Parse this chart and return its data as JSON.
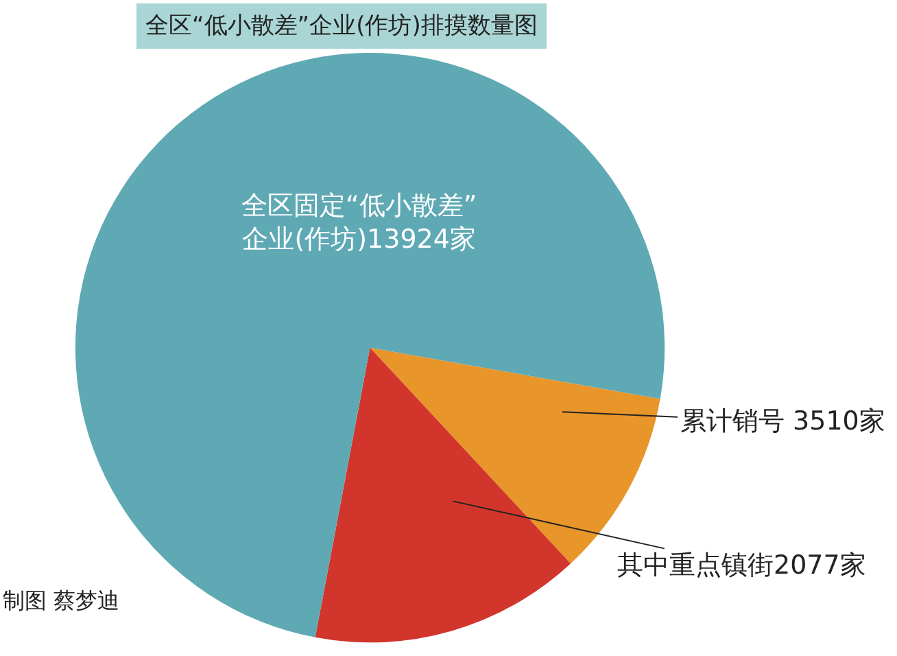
{
  "chart_data": {
    "type": "pie",
    "title": "全区“低小散差”企业(作坊)排摸数量图",
    "categories": [
      "全区固定“低小散差”\n企业(作坊)13924家",
      "累计销号 3510家",
      "其中重点镇街2077家"
    ],
    "values": [
      74.8,
      10.3,
      14.9
    ],
    "colors": [
      "#5fa9b4",
      "#e8952a",
      "#d2352c"
    ],
    "legend": false,
    "annotations": [
      "制图 蔡梦迪"
    ]
  }
}
